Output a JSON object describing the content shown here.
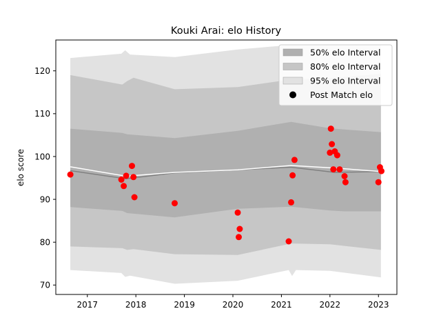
{
  "chart_data": {
    "type": "line",
    "title": "Kouki Arai: elo History",
    "xlabel": "",
    "ylabel": "elo score",
    "xlim": [
      2016.35,
      2023.38
    ],
    "ylim": [
      67.8,
      127.2
    ],
    "x_ticks": [
      2017,
      2018,
      2019,
      2020,
      2021,
      2022,
      2023
    ],
    "y_ticks": [
      70,
      80,
      90,
      100,
      110,
      120
    ],
    "grid": false,
    "legend_position": "top-right",
    "legend": [
      {
        "label": "50% elo Interval",
        "kind": "band",
        "color": "#b0b0b0"
      },
      {
        "label": "80% elo Interval",
        "kind": "band",
        "color": "#c6c6c6"
      },
      {
        "label": "95% elo Interval",
        "kind": "band",
        "color": "#e2e2e2"
      },
      {
        "label": "Post Match elo",
        "kind": "marker",
        "color": "#000000"
      }
    ],
    "series": [
      {
        "name": "95% elo Interval",
        "type": "band",
        "color": "#e2e2e2",
        "x": [
          2016.65,
          2017.7,
          2017.78,
          2017.88,
          2018.8,
          2020.1,
          2021.15,
          2021.22,
          2021.3,
          2022.0,
          2023.05
        ],
        "lower": [
          73.5,
          72.8,
          71.9,
          72.2,
          70.3,
          71.0,
          73.5,
          72.1,
          73.5,
          73.3,
          71.8
        ],
        "upper": [
          123.0,
          124.0,
          124.8,
          123.8,
          123.2,
          125.0,
          126.0,
          126.0,
          126.0,
          126.0,
          126.0
        ]
      },
      {
        "name": "80% elo Interval",
        "type": "band",
        "color": "#c6c6c6",
        "x": [
          2016.65,
          2017.72,
          2017.82,
          2017.95,
          2018.8,
          2020.1,
          2021.2,
          2022.0,
          2023.05
        ],
        "lower": [
          79.0,
          78.6,
          78.2,
          78.4,
          77.2,
          77.0,
          79.7,
          79.5,
          78.2
        ],
        "upper": [
          119.0,
          116.8,
          117.6,
          118.4,
          115.7,
          116.2,
          118.0,
          118.3,
          119.3
        ]
      },
      {
        "name": "50% elo Interval",
        "type": "band",
        "color": "#b0b0b0",
        "x": [
          2016.65,
          2017.72,
          2017.82,
          2018.8,
          2020.1,
          2021.2,
          2022.0,
          2022.3,
          2023.05
        ],
        "lower": [
          88.2,
          87.3,
          86.8,
          85.8,
          87.8,
          88.3,
          87.4,
          87.2,
          87.2
        ],
        "upper": [
          106.5,
          105.5,
          105.2,
          104.3,
          106.0,
          108.1,
          106.6,
          106.3,
          105.7
        ]
      },
      {
        "name": "Mean elo",
        "type": "line",
        "color": "#808080",
        "x": [
          2016.65,
          2017.8,
          2018.8,
          2020.1,
          2021.2,
          2022.1,
          2023.05
        ],
        "y": [
          96.7,
          94.8,
          96.2,
          96.9,
          97.5,
          96.3,
          96.5
        ]
      },
      {
        "name": "Median elo",
        "type": "line",
        "color": "#ffffff",
        "x": [
          2016.65,
          2017.8,
          2018.8,
          2020.1,
          2021.2,
          2022.1,
          2023.05
        ],
        "y": [
          97.6,
          95.4,
          96.3,
          96.9,
          97.9,
          97.3,
          96.5
        ]
      },
      {
        "name": "Post Match elo",
        "type": "scatter",
        "color": "#ff0000",
        "x": [
          2016.65,
          2017.7,
          2017.75,
          2017.8,
          2017.92,
          2017.95,
          2017.97,
          2018.8,
          2020.1,
          2020.12,
          2020.14,
          2021.15,
          2021.2,
          2021.23,
          2021.27,
          2022.0,
          2022.02,
          2022.04,
          2022.07,
          2022.1,
          2022.15,
          2022.2,
          2022.3,
          2022.32,
          2023.0,
          2023.03,
          2023.06
        ],
        "y": [
          95.8,
          94.6,
          93.1,
          95.5,
          97.8,
          95.2,
          90.5,
          89.1,
          86.9,
          81.2,
          83.1,
          80.2,
          89.3,
          95.6,
          99.2,
          100.9,
          106.5,
          102.9,
          97.0,
          101.2,
          100.3,
          97.0,
          95.4,
          94.0,
          94.0,
          97.5,
          96.6
        ]
      }
    ]
  }
}
